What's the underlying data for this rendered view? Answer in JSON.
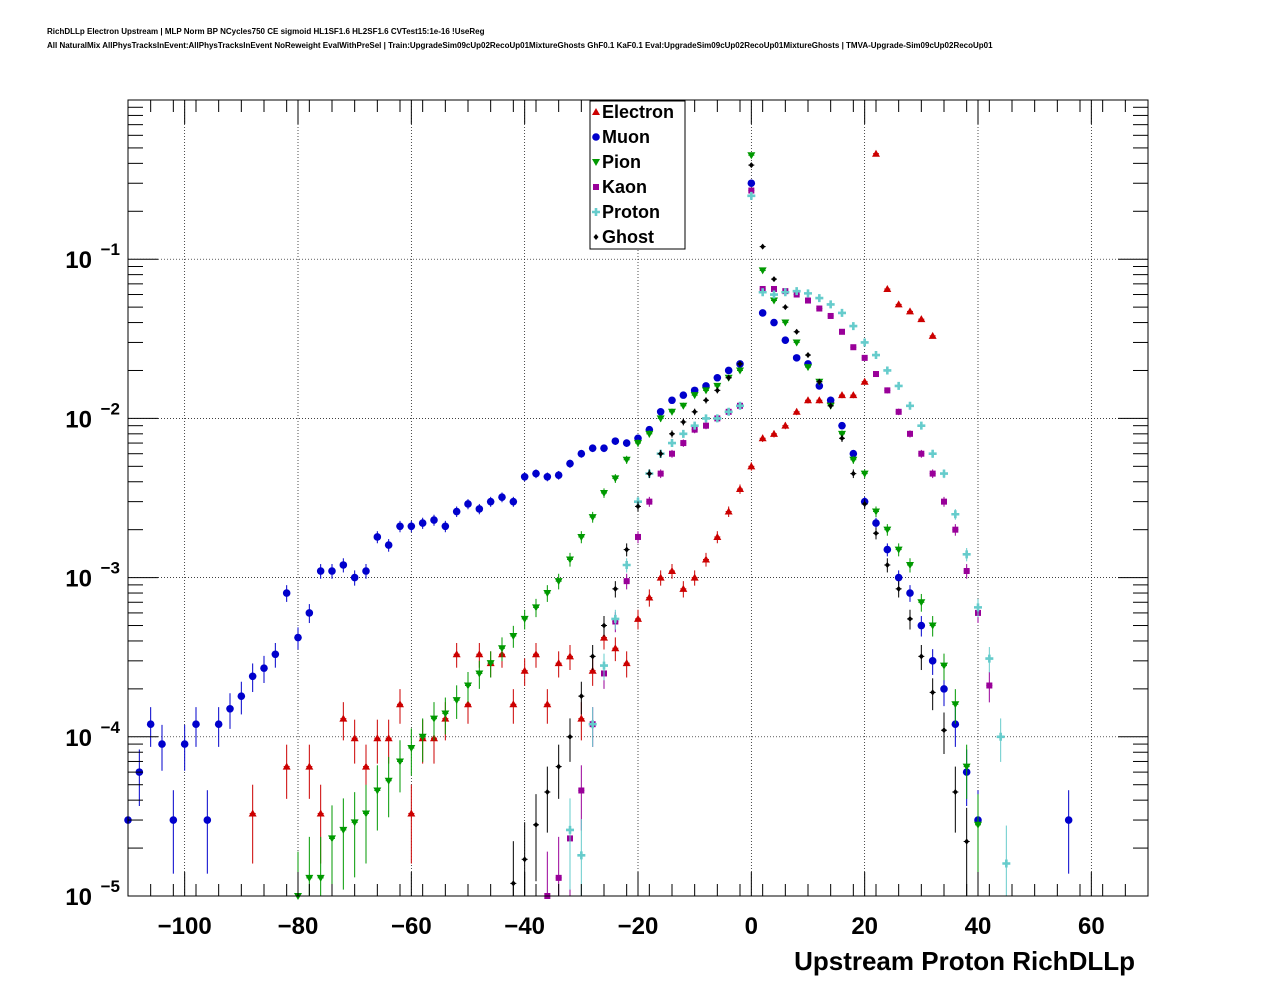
{
  "header": {
    "title_line1": "RichDLLp Electron Upstream | MLP Norm BP NCycles750 CE sigmoid HL1SF1.6 HL2SF1.6 CVTest15:1e-16 !UseReg",
    "title_line2": "All NaturalMix AllPhysTracksInEvent:AllPhysTracksInEvent NoReweight EvalWithPreSel | Train:UpgradeSim09cUp02RecoUp01MixtureGhosts GhF0.1 KaF0.1 Eval:UpgradeSim09cUp02RecoUp01MixtureGhosts | TMVA-Upgrade-Sim09cUp02RecoUp01"
  },
  "chart_data": {
    "type": "scatter",
    "xlabel": "Upstream Proton RichDLLp",
    "ylabel": "",
    "xlim": [
      -110,
      70
    ],
    "ylim": [
      1e-05,
      1
    ],
    "log_y": true,
    "grid": true,
    "legend_position": "top-center",
    "x_ticks": [
      -100,
      -80,
      -60,
      -40,
      -20,
      0,
      20,
      40,
      60
    ],
    "x_tick_labels": [
      "−100",
      "−80",
      "−60",
      "−40",
      "−20",
      "0",
      "20",
      "40",
      "60"
    ],
    "y_ticks": [
      1e-05,
      0.0001,
      0.001,
      0.01,
      0.1
    ],
    "y_tick_labels": [
      {
        "base": "10",
        "exp": "−5"
      },
      {
        "base": "10",
        "exp": "−4"
      },
      {
        "base": "10",
        "exp": "−3"
      },
      {
        "base": "10",
        "exp": "−2"
      },
      {
        "base": "10",
        "exp": "−1"
      }
    ],
    "series": [
      {
        "name": "Electron",
        "color": "#cc0000",
        "marker": "triangle-up",
        "x": [
          -88,
          -82,
          -78,
          -76,
          -72,
          -70,
          -68,
          -66,
          -64,
          -62,
          -60,
          -58,
          -56,
          -54,
          -52,
          -50,
          -48,
          -46,
          -44,
          -42,
          -40,
          -38,
          -36,
          -34,
          -32,
          -30,
          -28,
          -26,
          -24,
          -22,
          -20,
          -18,
          -16,
          -14,
          -12,
          -10,
          -8,
          -6,
          -4,
          -2,
          0,
          2,
          4,
          6,
          8,
          10,
          12,
          14,
          16,
          18,
          20,
          22,
          24,
          26,
          28,
          30,
          32
        ],
        "y": [
          3.3e-05,
          6.5e-05,
          6.5e-05,
          3.3e-05,
          0.00013,
          9.8e-05,
          6.5e-05,
          9.8e-05,
          9.8e-05,
          0.00016,
          3.3e-05,
          9.8e-05,
          9.8e-05,
          0.00013,
          0.00033,
          0.00016,
          0.00033,
          0.00029,
          0.00033,
          0.00016,
          0.00026,
          0.00033,
          0.00016,
          0.00029,
          0.00032,
          0.00013,
          0.00026,
          0.00042,
          0.00036,
          0.00029,
          0.00055,
          0.00075,
          0.001,
          0.0011,
          0.00085,
          0.001,
          0.0013,
          0.0018,
          0.0026,
          0.0036,
          0.005,
          0.0075,
          0.008,
          0.009,
          0.011,
          0.013,
          0.013,
          0.013,
          0.014,
          0.014,
          0.017,
          0.46,
          0.065,
          0.052,
          0.047,
          0.042,
          0.033
        ]
      },
      {
        "name": "Muon",
        "color": "#0000cc",
        "marker": "circle",
        "x": [
          -110,
          -108,
          -106,
          -104,
          -102,
          -100,
          -98,
          -96,
          -94,
          -92,
          -90,
          -88,
          -86,
          -84,
          -82,
          -80,
          -78,
          -76,
          -74,
          -72,
          -70,
          -68,
          -66,
          -64,
          -62,
          -60,
          -58,
          -56,
          -54,
          -52,
          -50,
          -48,
          -46,
          -44,
          -42,
          -40,
          -38,
          -36,
          -34,
          -32,
          -30,
          -28,
          -26,
          -24,
          -22,
          -20,
          -18,
          -16,
          -14,
          -12,
          -10,
          -8,
          -6,
          -4,
          -2,
          0,
          2,
          4,
          6,
          8,
          10,
          12,
          14,
          16,
          18,
          20,
          22,
          24,
          26,
          28,
          30,
          32,
          34,
          36,
          38,
          40,
          56
        ],
        "y": [
          3e-05,
          6e-05,
          0.00012,
          9e-05,
          3e-05,
          9e-05,
          0.00012,
          3e-05,
          0.00012,
          0.00015,
          0.00018,
          0.00024,
          0.00027,
          0.00033,
          0.0008,
          0.00042,
          0.0006,
          0.0011,
          0.0011,
          0.0012,
          0.001,
          0.0011,
          0.0018,
          0.0016,
          0.0021,
          0.0021,
          0.0022,
          0.0023,
          0.0021,
          0.0026,
          0.0029,
          0.0027,
          0.003,
          0.0032,
          0.003,
          0.0043,
          0.0045,
          0.0043,
          0.0044,
          0.0052,
          0.006,
          0.0065,
          0.0065,
          0.0072,
          0.007,
          0.0075,
          0.0085,
          0.011,
          0.013,
          0.014,
          0.015,
          0.016,
          0.018,
          0.02,
          0.022,
          0.3,
          0.046,
          0.04,
          0.031,
          0.024,
          0.022,
          0.016,
          0.013,
          0.009,
          0.006,
          0.003,
          0.0022,
          0.0015,
          0.001,
          0.0008,
          0.0005,
          0.0003,
          0.0002,
          0.00012,
          6e-05,
          3e-05,
          3e-05
        ]
      },
      {
        "name": "Pion",
        "color": "#009900",
        "marker": "triangle-down",
        "x": [
          -80,
          -78,
          -76,
          -74,
          -72,
          -70,
          -68,
          -66,
          -64,
          -62,
          -60,
          -58,
          -56,
          -54,
          -52,
          -50,
          -48,
          -46,
          -44,
          -42,
          -40,
          -38,
          -36,
          -34,
          -32,
          -30,
          -28,
          -26,
          -24,
          -22,
          -20,
          -18,
          -16,
          -14,
          -12,
          -10,
          -8,
          -6,
          -4,
          -2,
          0,
          2,
          4,
          6,
          8,
          10,
          12,
          14,
          16,
          18,
          20,
          22,
          24,
          26,
          28,
          30,
          32,
          34,
          36,
          38,
          40
        ],
        "y": [
          1e-05,
          1.3e-05,
          1.3e-05,
          2.3e-05,
          2.6e-05,
          2.9e-05,
          3.3e-05,
          4.6e-05,
          5.3e-05,
          7e-05,
          8.5e-05,
          0.0001,
          0.00013,
          0.00014,
          0.00017,
          0.00021,
          0.00025,
          0.00029,
          0.00036,
          0.00043,
          0.00055,
          0.00065,
          0.0008,
          0.00095,
          0.0013,
          0.0018,
          0.0024,
          0.0034,
          0.0042,
          0.0055,
          0.007,
          0.008,
          0.01,
          0.011,
          0.012,
          0.014,
          0.015,
          0.016,
          0.018,
          0.02,
          0.45,
          0.085,
          0.055,
          0.04,
          0.03,
          0.021,
          0.017,
          0.012,
          0.008,
          0.0055,
          0.0045,
          0.0026,
          0.002,
          0.0015,
          0.0012,
          0.0007,
          0.0005,
          0.00028,
          0.00016,
          6.5e-05,
          2.8e-05
        ]
      },
      {
        "name": "Kaon",
        "color": "#990099",
        "marker": "square",
        "x": [
          -36,
          -34,
          -32,
          -30,
          -28,
          -26,
          -24,
          -22,
          -20,
          -18,
          -16,
          -14,
          -12,
          -10,
          -8,
          -6,
          -4,
          -2,
          0,
          2,
          4,
          6,
          8,
          10,
          12,
          14,
          16,
          18,
          20,
          22,
          24,
          26,
          28,
          30,
          32,
          34,
          36,
          38,
          40,
          42
        ],
        "y": [
          1e-05,
          1.3e-05,
          2.3e-05,
          4.6e-05,
          0.00012,
          0.00025,
          0.00053,
          0.00095,
          0.0018,
          0.003,
          0.0045,
          0.006,
          0.007,
          0.0085,
          0.009,
          0.01,
          0.011,
          0.012,
          0.27,
          0.065,
          0.065,
          0.063,
          0.06,
          0.055,
          0.049,
          0.044,
          0.035,
          0.028,
          0.024,
          0.019,
          0.015,
          0.011,
          0.008,
          0.006,
          0.0045,
          0.003,
          0.002,
          0.0011,
          0.0006,
          0.00021
        ]
      },
      {
        "name": "Proton",
        "color": "#66cccc",
        "marker": "plus",
        "x": [
          -32,
          -30,
          -28,
          -26,
          -24,
          -22,
          -20,
          -18,
          -16,
          -14,
          -12,
          -10,
          -8,
          -6,
          -4,
          -2,
          0,
          2,
          4,
          6,
          8,
          10,
          12,
          14,
          16,
          18,
          20,
          22,
          24,
          26,
          28,
          30,
          32,
          34,
          36,
          38,
          40,
          42,
          44,
          45
        ],
        "y": [
          2.6e-05,
          1.8e-05,
          0.00012,
          0.00028,
          0.00055,
          0.0012,
          0.003,
          0.0045,
          0.006,
          0.007,
          0.008,
          0.009,
          0.01,
          0.01,
          0.011,
          0.012,
          0.25,
          0.062,
          0.06,
          0.062,
          0.063,
          0.061,
          0.057,
          0.052,
          0.046,
          0.038,
          0.03,
          0.025,
          0.02,
          0.016,
          0.012,
          0.009,
          0.006,
          0.0045,
          0.0025,
          0.0014,
          0.00065,
          0.00031,
          0.0001,
          1.6e-05
        ]
      },
      {
        "name": "Ghost",
        "color": "#000000",
        "marker": "diamond",
        "x": [
          -42,
          -40,
          -38,
          -36,
          -34,
          -32,
          -30,
          -28,
          -26,
          -24,
          -22,
          -20,
          -18,
          -16,
          -14,
          -12,
          -10,
          -8,
          -6,
          -4,
          -2,
          0,
          2,
          4,
          6,
          8,
          10,
          12,
          14,
          16,
          18,
          20,
          22,
          24,
          26,
          28,
          30,
          32,
          34,
          36,
          38
        ],
        "y": [
          1.2e-05,
          1.7e-05,
          2.8e-05,
          4.5e-05,
          6.5e-05,
          0.0001,
          0.00018,
          0.00032,
          0.0005,
          0.00085,
          0.0015,
          0.0028,
          0.0045,
          0.006,
          0.008,
          0.0095,
          0.011,
          0.013,
          0.015,
          0.018,
          0.022,
          0.39,
          0.12,
          0.075,
          0.05,
          0.035,
          0.025,
          0.017,
          0.012,
          0.0075,
          0.0045,
          0.0029,
          0.0019,
          0.0012,
          0.00085,
          0.00055,
          0.00032,
          0.00019,
          0.00011,
          4.5e-05,
          2.2e-05
        ]
      }
    ]
  }
}
